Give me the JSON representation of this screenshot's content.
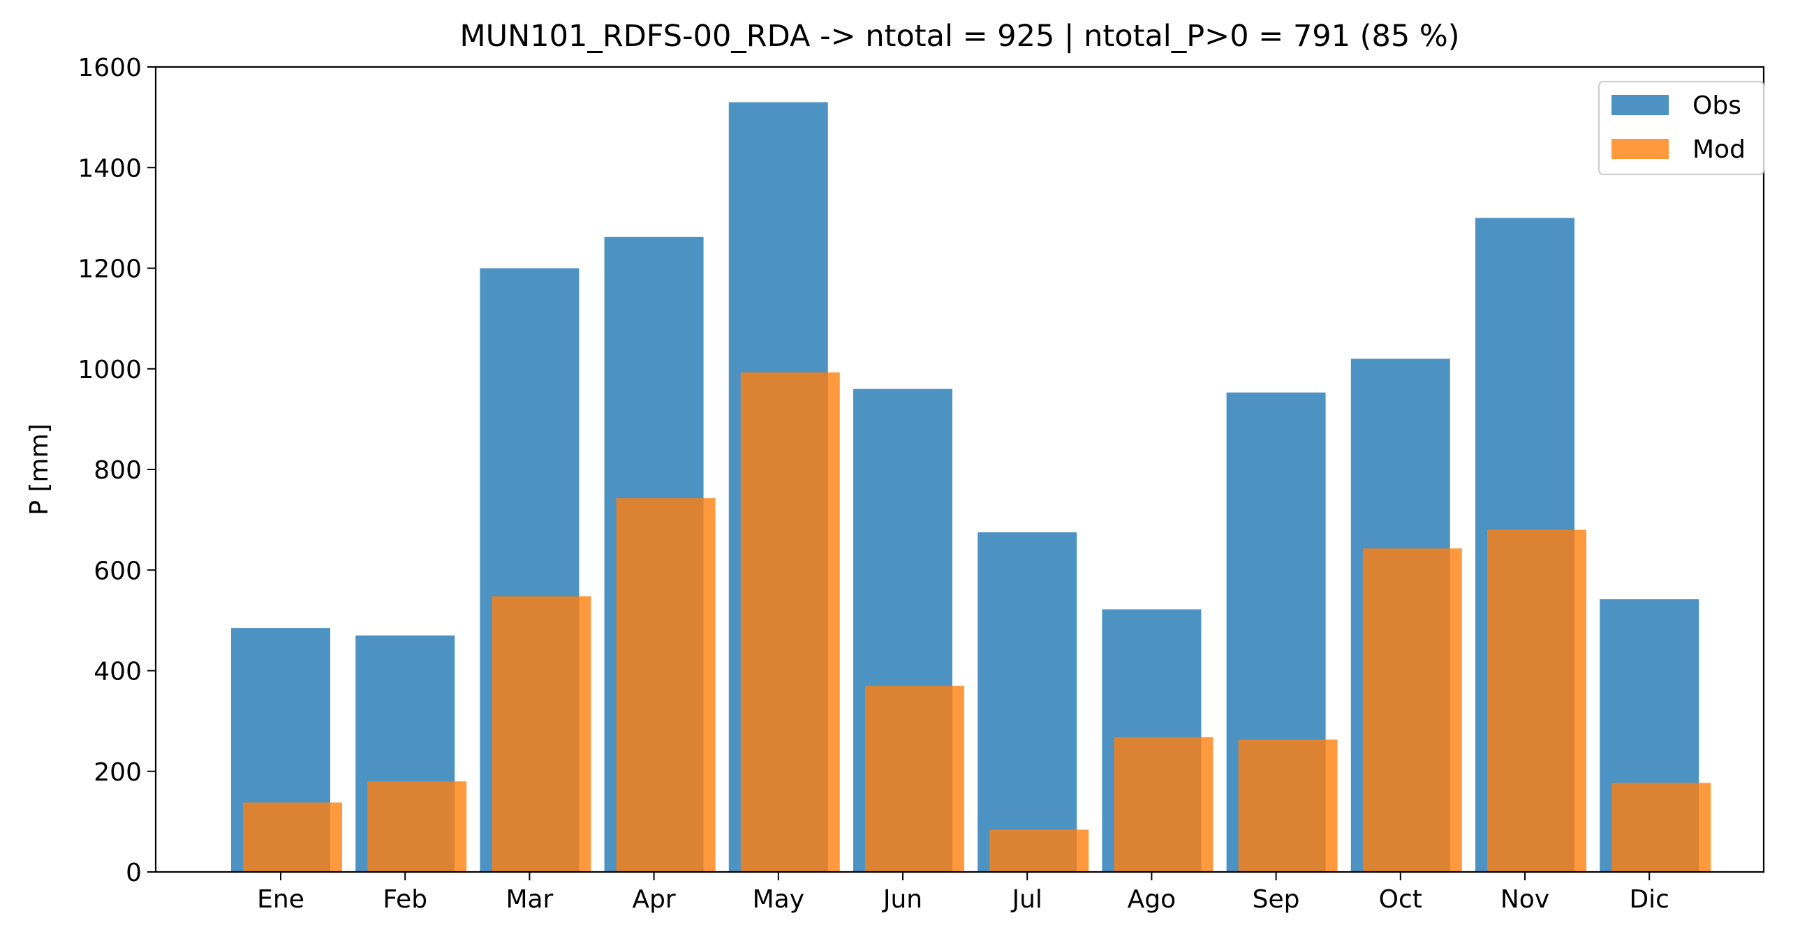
{
  "chart_data": {
    "type": "bar",
    "title": "MUN101_RDFS-00_RDA -> ntotal = 925 | ntotal_P>0 = 791 (85 %)",
    "xlabel": "",
    "ylabel": "P [mm]",
    "ylim": [
      0,
      1600
    ],
    "yticks": [
      0,
      200,
      400,
      600,
      800,
      1000,
      1200,
      1400,
      1600
    ],
    "categories": [
      "Ene",
      "Feb",
      "Mar",
      "Apr",
      "May",
      "Jun",
      "Jul",
      "Ago",
      "Sep",
      "Oct",
      "Nov",
      "Dic"
    ],
    "series": [
      {
        "name": "Obs",
        "color": "#1f77b4",
        "opacity": 0.8,
        "values": [
          485,
          470,
          1200,
          1262,
          1530,
          960,
          675,
          522,
          953,
          1020,
          1300,
          542
        ]
      },
      {
        "name": "Mod",
        "color": "#ff7f0e",
        "opacity": 0.8,
        "values": [
          138,
          180,
          548,
          743,
          993,
          370,
          84,
          268,
          263,
          643,
          680,
          177
        ]
      }
    ],
    "grid": false,
    "legend_position": "top-right"
  }
}
